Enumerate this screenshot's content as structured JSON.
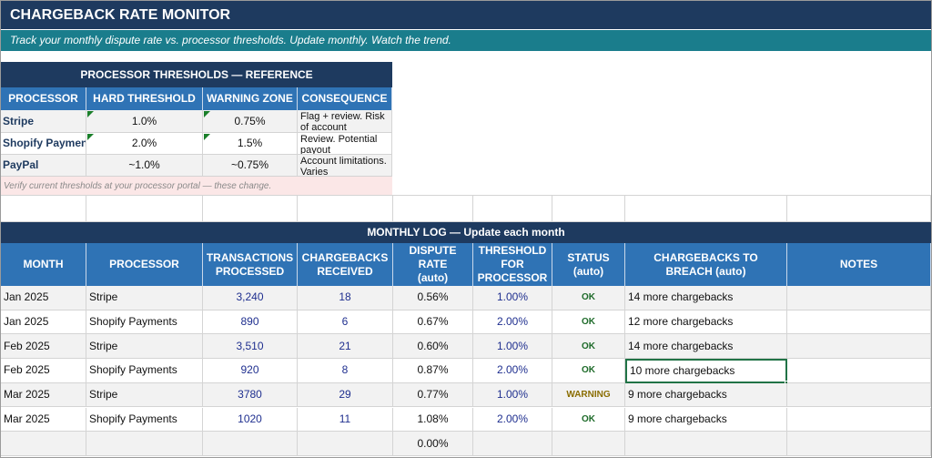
{
  "header": {
    "title": "CHARGEBACK RATE MONITOR",
    "subtitle": "Track your monthly dispute rate vs. processor thresholds. Update monthly. Watch the trend."
  },
  "reference": {
    "title": "PROCESSOR THRESHOLDS — REFERENCE",
    "columns": [
      "PROCESSOR",
      "HARD THRESHOLD",
      "WARNING ZONE",
      "CONSEQUENCE"
    ],
    "rows": [
      [
        "Stripe",
        "1.0%",
        "0.75%",
        "Flag + review. Risk of account"
      ],
      [
        "Shopify Paymen",
        "2.0%",
        "1.5%",
        "Review. Potential payout"
      ],
      [
        "PayPal",
        "~1.0%",
        "~0.75%",
        "Account limitations. Varies"
      ]
    ],
    "note": "Verify current thresholds at your processor portal — these change."
  },
  "log": {
    "title": "MONTHLY LOG — Update each month",
    "columns": [
      "MONTH",
      "PROCESSOR",
      "TRANSACTIONS\nPROCESSED",
      "CHARGEBACKS\nRECEIVED",
      "DISPUTE\nRATE\n(auto)",
      "THRESHOLD\nFOR\nPROCESSOR",
      "STATUS\n(auto)",
      "CHARGEBACKS TO\nBREACH (auto)",
      "NOTES"
    ],
    "rows": [
      [
        "Jan 2025",
        "Stripe",
        "3,240",
        "18",
        "0.56%",
        "1.00%",
        "OK",
        "14 more chargebacks",
        null
      ],
      [
        "Jan 2025",
        "Shopify Payments",
        "890",
        "6",
        "0.67%",
        "2.00%",
        "OK",
        "12 more chargebacks",
        null
      ],
      [
        "Feb 2025",
        "Stripe",
        "3,510",
        "21",
        "0.60%",
        "1.00%",
        "OK",
        "14 more chargebacks",
        null
      ],
      [
        "Feb 2025",
        "Shopify Payments",
        "920",
        "8",
        "0.87%",
        "2.00%",
        "OK",
        "10 more chargebacks",
        null
      ],
      [
        "Mar 2025",
        "Stripe",
        "3780",
        "29",
        "0.77%",
        "1.00%",
        "WARNING",
        "9 more chargebacks",
        null
      ],
      [
        "Mar 2025",
        "Shopify Payments",
        "1020",
        "11",
        "1.08%",
        "2.00%",
        "OK",
        "9 more chargebacks",
        null
      ],
      [
        null,
        null,
        null,
        null,
        "0.00%",
        null,
        null,
        null,
        null
      ]
    ]
  }
}
